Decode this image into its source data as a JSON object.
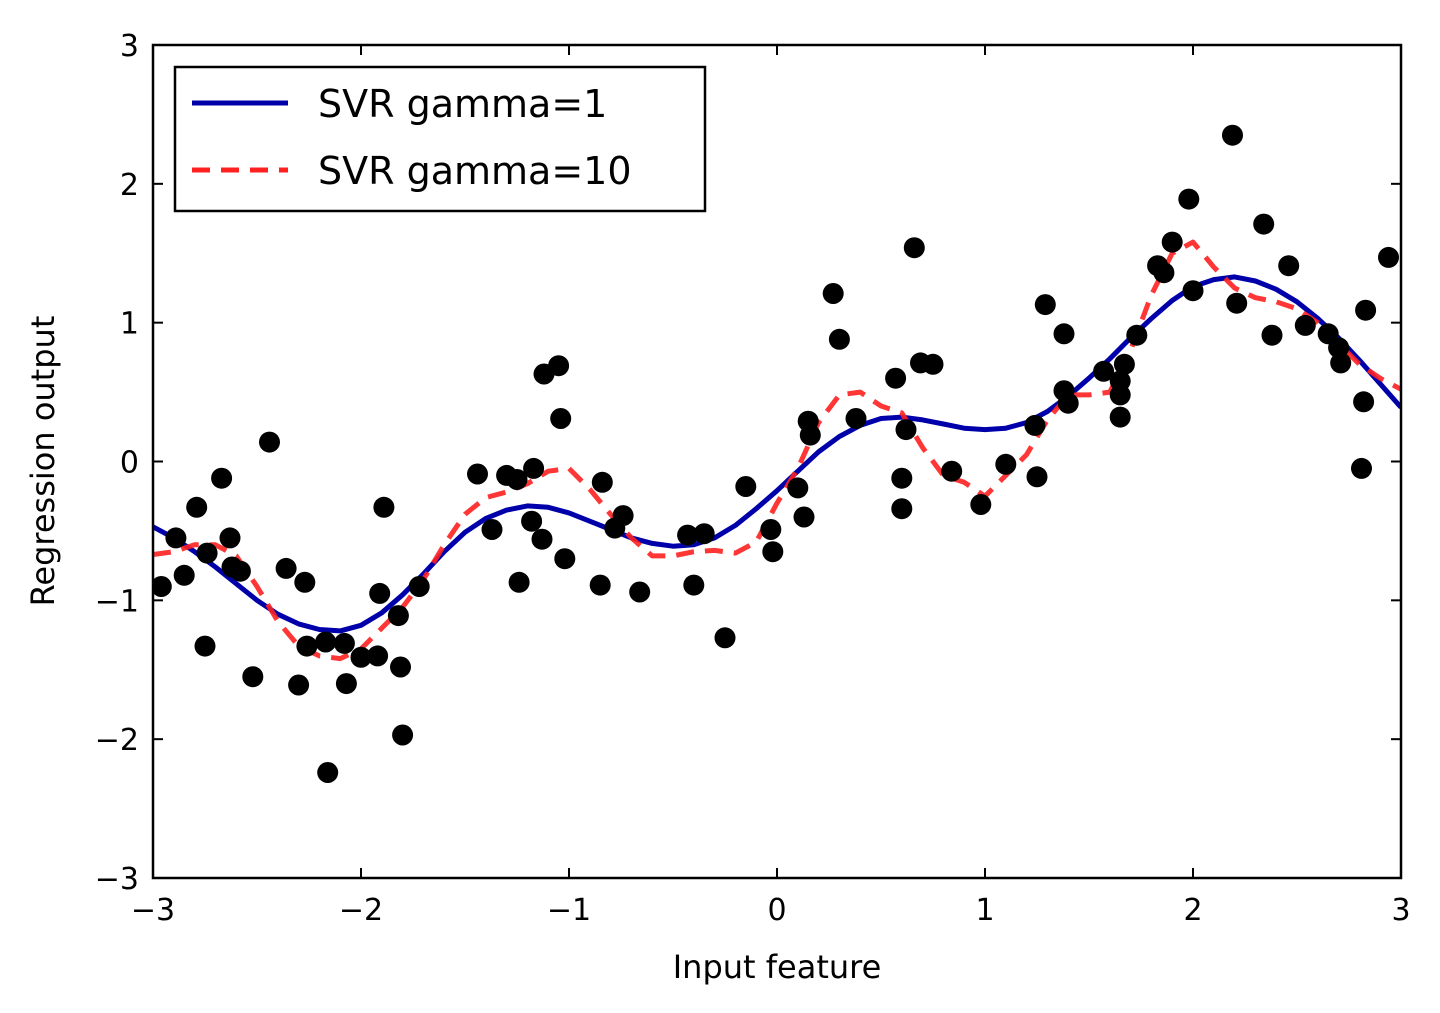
{
  "chart_data": {
    "type": "scatter",
    "title": "",
    "xlabel": "Input feature",
    "ylabel": "Regression output",
    "xlim": [
      -3,
      3
    ],
    "ylim": [
      -3,
      3
    ],
    "xticks": [
      -3,
      -2,
      -1,
      0,
      1,
      2,
      3
    ],
    "yticks": [
      -3,
      -2,
      -1,
      0,
      1,
      2,
      3
    ],
    "xtick_labels": [
      "−3",
      "−2",
      "−1",
      "0",
      "1",
      "2",
      "3"
    ],
    "ytick_labels": [
      "−3",
      "−2",
      "−1",
      "0",
      "1",
      "2",
      "3"
    ],
    "grid": false,
    "legend_position": "top-left",
    "points_color": "#000000",
    "points": [
      [
        -2.96,
        -0.9
      ],
      [
        -2.89,
        -0.55
      ],
      [
        -2.85,
        -0.82
      ],
      [
        -2.79,
        -0.33
      ],
      [
        -2.75,
        -1.33
      ],
      [
        -2.74,
        -0.66
      ],
      [
        -2.67,
        -0.12
      ],
      [
        -2.63,
        -0.55
      ],
      [
        -2.62,
        -0.76
      ],
      [
        -2.58,
        -0.79
      ],
      [
        -2.52,
        -1.55
      ],
      [
        -2.44,
        0.14
      ],
      [
        -2.36,
        -0.77
      ],
      [
        -2.3,
        -1.61
      ],
      [
        -2.27,
        -0.87
      ],
      [
        -2.26,
        -1.33
      ],
      [
        -2.17,
        -1.3
      ],
      [
        -2.16,
        -2.24
      ],
      [
        -2.08,
        -1.31
      ],
      [
        -2.07,
        -1.6
      ],
      [
        -2.0,
        -1.41
      ],
      [
        -1.92,
        -1.4
      ],
      [
        -1.91,
        -0.95
      ],
      [
        -1.89,
        -0.33
      ],
      [
        -1.82,
        -1.11
      ],
      [
        -1.81,
        -1.48
      ],
      [
        -1.8,
        -1.97
      ],
      [
        -1.72,
        -0.9
      ],
      [
        -1.44,
        -0.09
      ],
      [
        -1.37,
        -0.49
      ],
      [
        -1.3,
        -0.1
      ],
      [
        -1.25,
        -0.13
      ],
      [
        -1.24,
        -0.87
      ],
      [
        -1.18,
        -0.43
      ],
      [
        -1.17,
        -0.05
      ],
      [
        -1.13,
        -0.56
      ],
      [
        -1.12,
        0.63
      ],
      [
        -1.05,
        0.69
      ],
      [
        -1.04,
        0.31
      ],
      [
        -1.02,
        -0.7
      ],
      [
        -0.85,
        -0.89
      ],
      [
        -0.84,
        -0.15
      ],
      [
        -0.78,
        -0.48
      ],
      [
        -0.74,
        -0.39
      ],
      [
        -0.66,
        -0.94
      ],
      [
        -0.43,
        -0.53
      ],
      [
        -0.4,
        -0.89
      ],
      [
        -0.35,
        -0.52
      ],
      [
        -0.25,
        -1.27
      ],
      [
        -0.15,
        -0.18
      ],
      [
        -0.03,
        -0.49
      ],
      [
        -0.02,
        -0.65
      ],
      [
        0.1,
        -0.19
      ],
      [
        0.13,
        -0.4
      ],
      [
        0.15,
        0.29
      ],
      [
        0.16,
        0.19
      ],
      [
        0.27,
        1.21
      ],
      [
        0.3,
        0.88
      ],
      [
        0.38,
        0.31
      ],
      [
        0.57,
        0.6
      ],
      [
        0.6,
        -0.12
      ],
      [
        0.6,
        -0.34
      ],
      [
        0.62,
        0.23
      ],
      [
        0.66,
        1.54
      ],
      [
        0.69,
        0.71
      ],
      [
        0.75,
        0.7
      ],
      [
        0.84,
        -0.07
      ],
      [
        0.98,
        -0.31
      ],
      [
        1.1,
        -0.02
      ],
      [
        1.24,
        0.26
      ],
      [
        1.25,
        -0.11
      ],
      [
        1.29,
        1.13
      ],
      [
        1.38,
        0.92
      ],
      [
        1.38,
        0.51
      ],
      [
        1.4,
        0.42
      ],
      [
        1.57,
        0.65
      ],
      [
        1.65,
        0.48
      ],
      [
        1.65,
        0.58
      ],
      [
        1.65,
        0.32
      ],
      [
        1.67,
        0.7
      ],
      [
        1.73,
        0.91
      ],
      [
        1.83,
        1.41
      ],
      [
        1.86,
        1.36
      ],
      [
        1.9,
        1.58
      ],
      [
        1.98,
        1.89
      ],
      [
        2.0,
        1.23
      ],
      [
        2.19,
        2.35
      ],
      [
        2.21,
        1.14
      ],
      [
        2.34,
        1.71
      ],
      [
        2.38,
        0.91
      ],
      [
        2.46,
        1.41
      ],
      [
        2.54,
        0.98
      ],
      [
        2.65,
        0.92
      ],
      [
        2.7,
        0.82
      ],
      [
        2.71,
        0.71
      ],
      [
        2.81,
        -0.05
      ],
      [
        2.82,
        0.43
      ],
      [
        2.83,
        1.09
      ],
      [
        2.94,
        1.47
      ]
    ],
    "series": [
      {
        "name": "SVR gamma=1",
        "color": "#0000aa",
        "style": "solid",
        "x": [
          -3.0,
          -2.9,
          -2.8,
          -2.7,
          -2.6,
          -2.5,
          -2.4,
          -2.3,
          -2.2,
          -2.1,
          -2.0,
          -1.9,
          -1.8,
          -1.7,
          -1.6,
          -1.5,
          -1.4,
          -1.3,
          -1.2,
          -1.1,
          -1.0,
          -0.9,
          -0.8,
          -0.7,
          -0.6,
          -0.5,
          -0.4,
          -0.3,
          -0.2,
          -0.1,
          0.0,
          0.1,
          0.2,
          0.3,
          0.4,
          0.5,
          0.6,
          0.7,
          0.8,
          0.9,
          1.0,
          1.1,
          1.2,
          1.3,
          1.4,
          1.5,
          1.6,
          1.7,
          1.8,
          1.9,
          2.0,
          2.1,
          2.2,
          2.3,
          2.4,
          2.5,
          2.6,
          2.7,
          2.8,
          2.9,
          3.0
        ],
        "y": [
          -0.47,
          -0.55,
          -0.65,
          -0.76,
          -0.88,
          -1.0,
          -1.1,
          -1.17,
          -1.21,
          -1.22,
          -1.18,
          -1.09,
          -0.96,
          -0.81,
          -0.65,
          -0.51,
          -0.41,
          -0.35,
          -0.32,
          -0.33,
          -0.37,
          -0.43,
          -0.49,
          -0.55,
          -0.59,
          -0.61,
          -0.6,
          -0.55,
          -0.46,
          -0.34,
          -0.21,
          -0.07,
          0.07,
          0.18,
          0.26,
          0.31,
          0.32,
          0.3,
          0.27,
          0.24,
          0.23,
          0.24,
          0.28,
          0.36,
          0.47,
          0.6,
          0.74,
          0.89,
          1.03,
          1.16,
          1.26,
          1.31,
          1.33,
          1.3,
          1.24,
          1.15,
          1.03,
          0.89,
          0.73,
          0.56,
          0.39
        ]
      },
      {
        "name": "SVR gamma=10",
        "color": "#ff2020",
        "style": "dashed",
        "x": [
          -3.0,
          -2.9,
          -2.8,
          -2.7,
          -2.6,
          -2.5,
          -2.4,
          -2.3,
          -2.2,
          -2.1,
          -2.0,
          -1.9,
          -1.8,
          -1.7,
          -1.6,
          -1.5,
          -1.4,
          -1.3,
          -1.2,
          -1.1,
          -1.0,
          -0.9,
          -0.8,
          -0.7,
          -0.6,
          -0.5,
          -0.4,
          -0.3,
          -0.2,
          -0.1,
          0.0,
          0.1,
          0.2,
          0.3,
          0.4,
          0.5,
          0.6,
          0.7,
          0.8,
          0.9,
          1.0,
          1.1,
          1.2,
          1.3,
          1.4,
          1.5,
          1.6,
          1.7,
          1.8,
          1.9,
          2.0,
          2.1,
          2.2,
          2.3,
          2.4,
          2.5,
          2.6,
          2.7,
          2.8,
          2.9,
          3.0
        ],
        "y": [
          -0.67,
          -0.65,
          -0.6,
          -0.6,
          -0.68,
          -0.9,
          -1.15,
          -1.33,
          -1.4,
          -1.42,
          -1.35,
          -1.2,
          -1.05,
          -0.85,
          -0.6,
          -0.38,
          -0.26,
          -0.22,
          -0.16,
          -0.07,
          -0.05,
          -0.2,
          -0.38,
          -0.55,
          -0.68,
          -0.68,
          -0.65,
          -0.64,
          -0.66,
          -0.58,
          -0.3,
          -0.05,
          0.28,
          0.48,
          0.5,
          0.4,
          0.35,
          0.1,
          -0.1,
          -0.15,
          -0.25,
          -0.1,
          0.05,
          0.3,
          0.48,
          0.48,
          0.5,
          0.8,
          1.2,
          1.5,
          1.58,
          1.4,
          1.25,
          1.18,
          1.15,
          1.1,
          1.0,
          0.85,
          0.7,
          0.6,
          0.52
        ]
      }
    ]
  }
}
